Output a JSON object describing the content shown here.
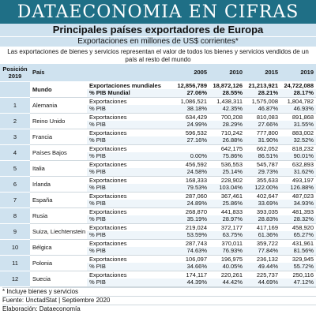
{
  "banner": "DATAECONOMIA EN CIFRAS",
  "title": "Principales países exportadores de Europa",
  "subtitle": "Exportaciones en millones de US$ corrientes*",
  "description": "Las exportaciones de bienes y servicios representan el valor de todos los bienes y servicios vendidos de un país al resto del mundo",
  "headers": {
    "posicion": "Posición 2019",
    "pais": "País",
    "y2005": "2005",
    "y2010": "2010",
    "y2015": "2015",
    "y2019": "2019"
  },
  "world": {
    "name": "Mundo",
    "rows": [
      {
        "label": "Exportaciones mundiales",
        "v": [
          "12,856,789",
          "18,872,126",
          "21,213,921",
          "24,722,088"
        ]
      },
      {
        "label": "% PIB Mundial",
        "v": [
          "27.06%",
          "28.55%",
          "28.21%",
          "28.17%"
        ]
      }
    ]
  },
  "countries": [
    {
      "pos": "1",
      "name": "Alemania",
      "exp": [
        "1,086,521",
        "1,438,311",
        "1,575,008",
        "1,804,782"
      ],
      "pib": [
        "38.18%",
        "42.35%",
        "46.87%",
        "46.93%"
      ]
    },
    {
      "pos": "2",
      "name": "Reino Unido",
      "exp": [
        "634,429",
        "700,208",
        "810,083",
        "891,868"
      ],
      "pib": [
        "24.99%",
        "28.29%",
        "27.66%",
        "31.55%"
      ]
    },
    {
      "pos": "3",
      "name": "Francia",
      "exp": [
        "596,532",
        "710,242",
        "777,800",
        "883,002"
      ],
      "pib": [
        "27.16%",
        "26.88%",
        "31.90%",
        "32.52%"
      ]
    },
    {
      "pos": "4",
      "name": "Países Bajos",
      "exp": [
        "",
        "642,175",
        "662,052",
        "818,232"
      ],
      "pib": [
        "0.00%",
        "75.86%",
        "86.51%",
        "90.01%"
      ]
    },
    {
      "pos": "5",
      "name": "Italia",
      "exp": [
        "456,592",
        "536,553",
        "545,787",
        "632,893"
      ],
      "pib": [
        "24.58%",
        "25.14%",
        "29.73%",
        "31.62%"
      ]
    },
    {
      "pos": "6",
      "name": "Irlanda",
      "exp": [
        "168,333",
        "228,902",
        "355,633",
        "493,197"
      ],
      "pib": [
        "79.53%",
        "103.04%",
        "122.00%",
        "126.88%"
      ]
    },
    {
      "pos": "7",
      "name": "España",
      "exp": [
        "287,060",
        "367,461",
        "402,647",
        "487,023"
      ],
      "pib": [
        "24.89%",
        "25.86%",
        "33.69%",
        "34.93%"
      ]
    },
    {
      "pos": "8",
      "name": "Rusia",
      "exp": [
        "268,870",
        "441,833",
        "393,035",
        "481,393"
      ],
      "pib": [
        "35.19%",
        "28.97%",
        "28.83%",
        "28.32%"
      ]
    },
    {
      "pos": "9",
      "name": "Suiza, Liechtenstein",
      "exp": [
        "219,024",
        "372,177",
        "417,169",
        "458,920"
      ],
      "pib": [
        "53.59%",
        "63.75%",
        "61.36%",
        "65.27%"
      ]
    },
    {
      "pos": "10",
      "name": "Bélgica",
      "exp": [
        "287,743",
        "370,011",
        "359,722",
        "431,961"
      ],
      "pib": [
        "74.63%",
        "76.93%",
        "77.84%",
        "81.56%"
      ]
    },
    {
      "pos": "11",
      "name": "Polonia",
      "exp": [
        "106,097",
        "196,975",
        "236,132",
        "329,945"
      ],
      "pib": [
        "34.66%",
        "40.05%",
        "49.44%",
        "55.72%"
      ]
    },
    {
      "pos": "12",
      "name": "Suecia",
      "exp": [
        "174,117",
        "220,261",
        "225,737",
        "250,116"
      ],
      "pib": [
        "44.39%",
        "44.42%",
        "44.69%",
        "47.12%"
      ]
    }
  ],
  "row_labels": {
    "exp": "Exportaciones",
    "pib": "% PIB"
  },
  "footer": [
    "* Incluye bienes y servicios",
    "Fuente: UnctadStat | Septiembre 2020",
    "Elaboración: Dataeconomía"
  ]
}
